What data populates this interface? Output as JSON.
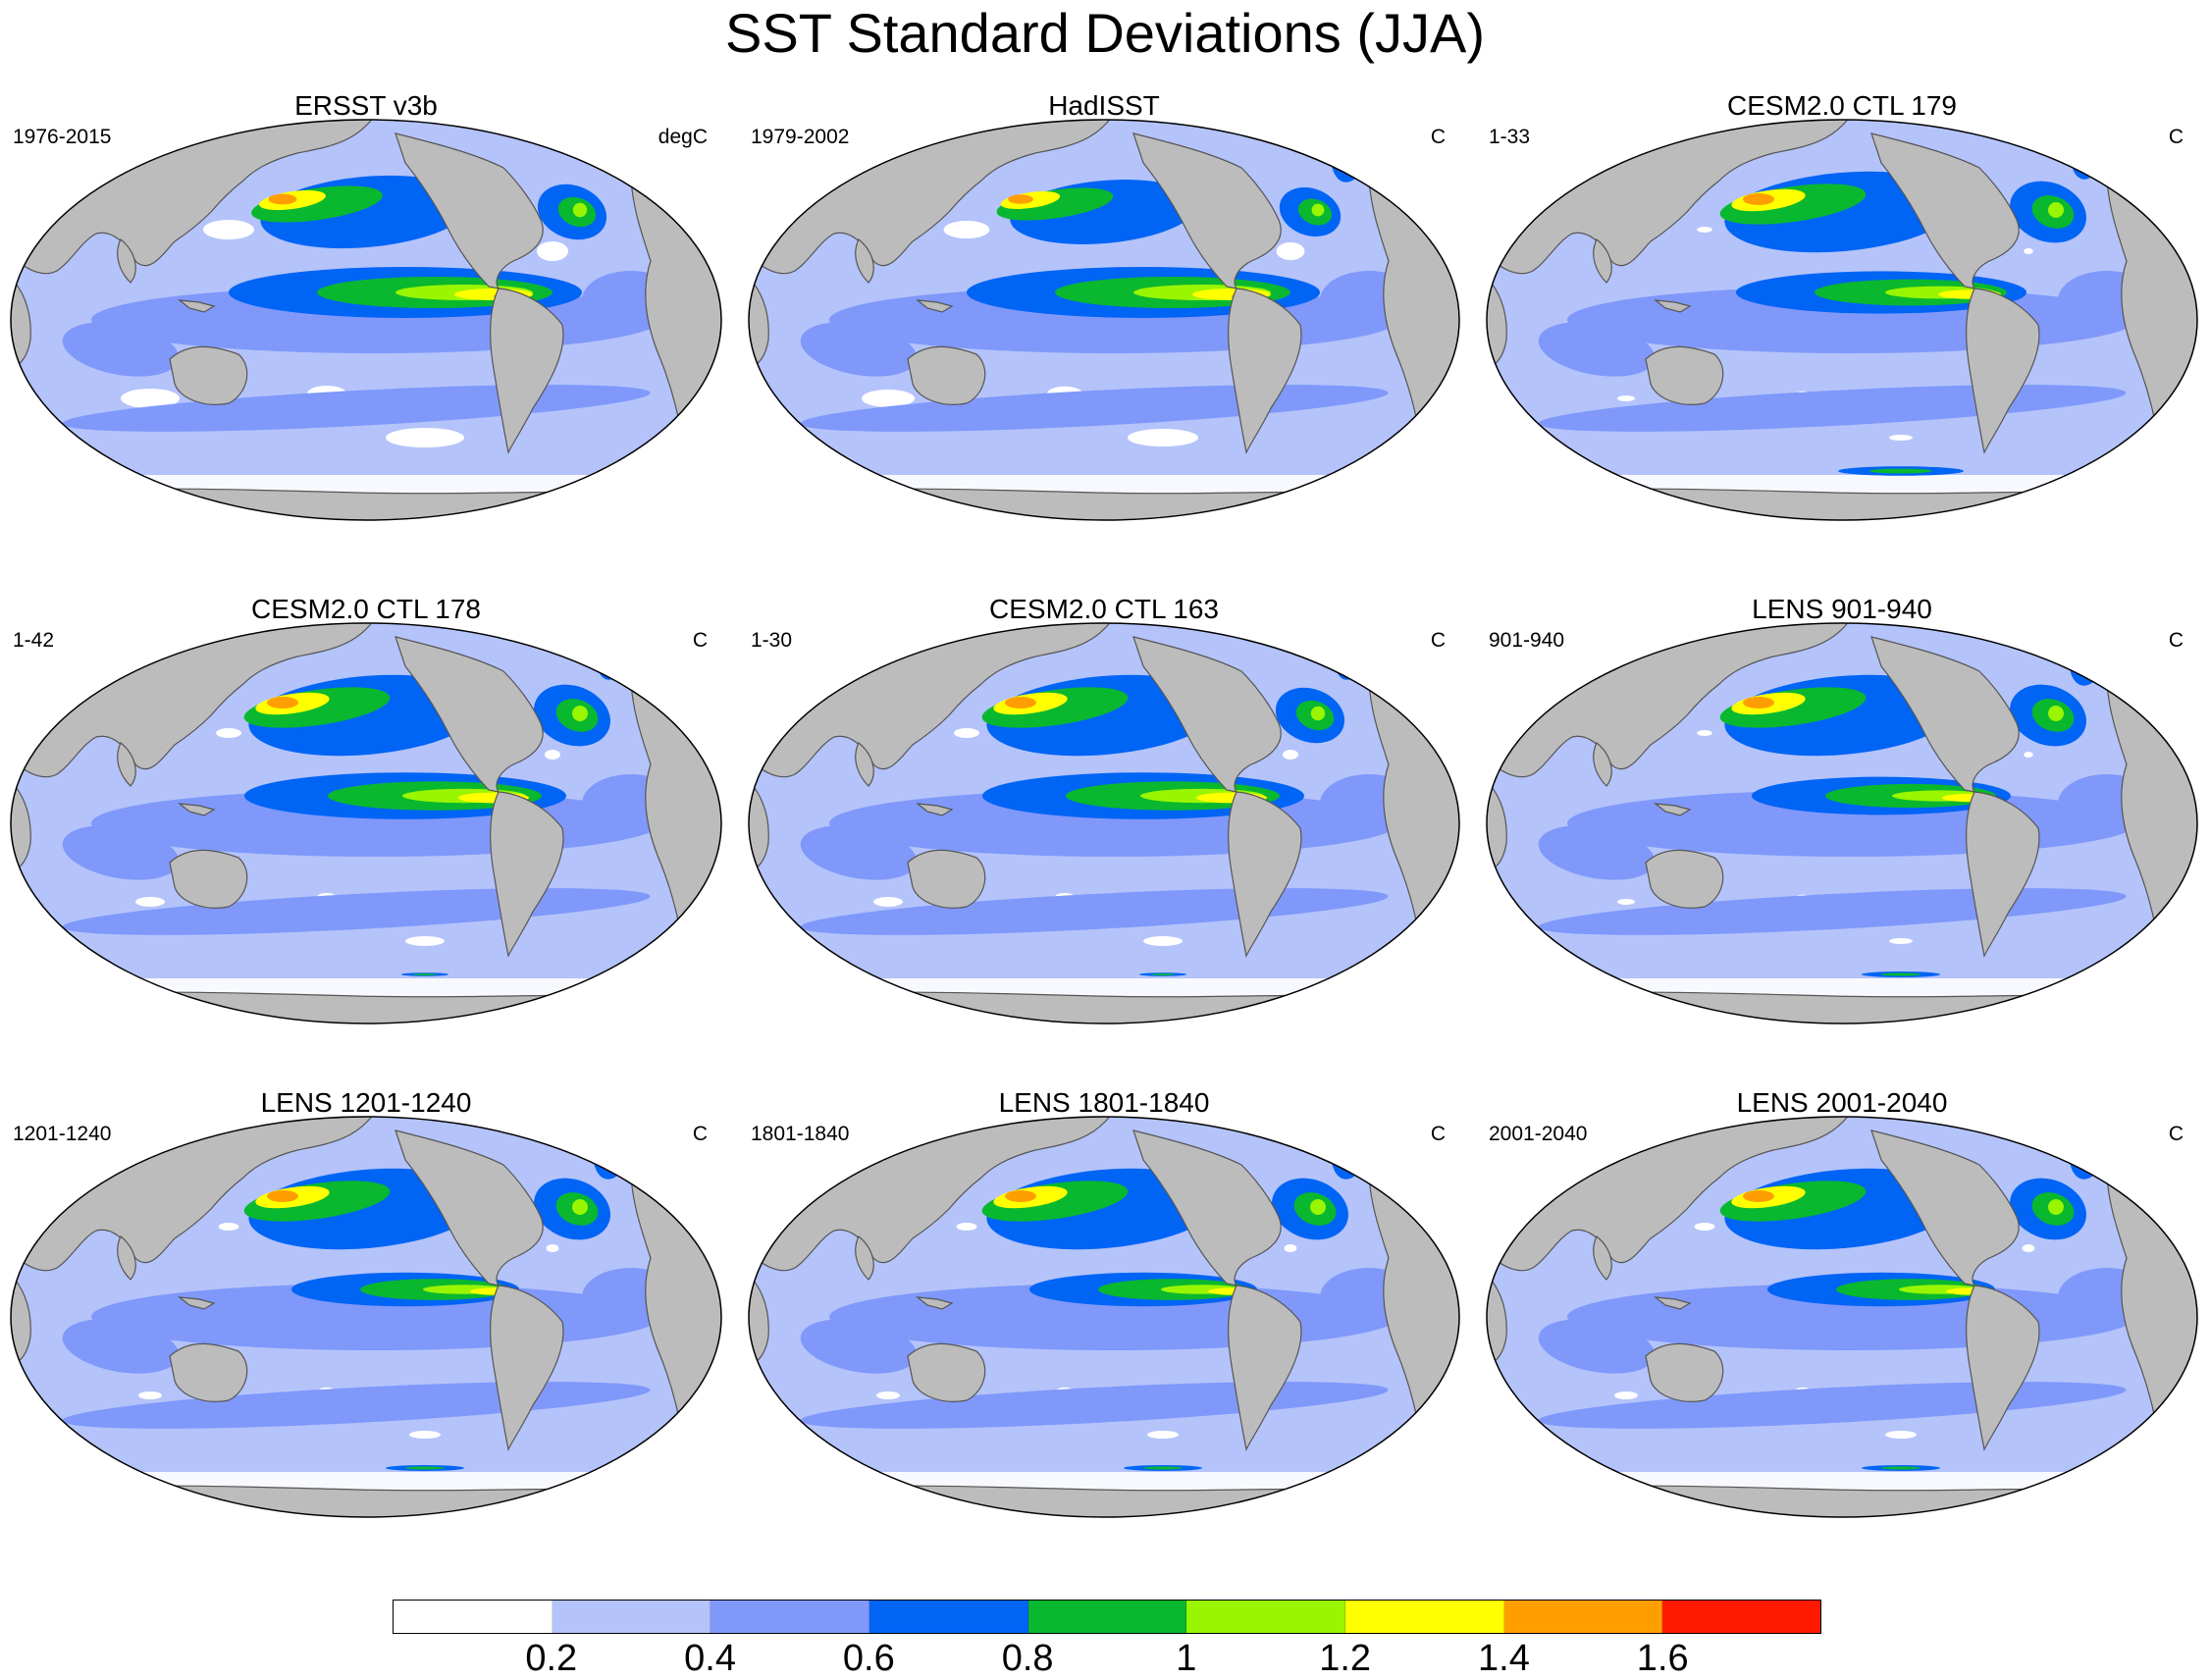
{
  "title": "SST Standard Deviations (JJA)",
  "panels": [
    {
      "title": "ERSST v3b",
      "period": "1976-2015",
      "units": "degC",
      "pattern": {
        "nino": 1.0,
        "npac": 0.9,
        "arctic": 0.5,
        "nat": 0.9,
        "so": 0.0,
        "white": 1.0
      }
    },
    {
      "title": "HadISST",
      "period": "1979-2002",
      "units": "C",
      "pattern": {
        "nino": 1.0,
        "npac": 0.8,
        "arctic": 1.0,
        "nat": 0.8,
        "so": 0.0,
        "white": 0.9
      }
    },
    {
      "title": "CESM2.0 CTL 179",
      "period": "1-33",
      "units": "C",
      "pattern": {
        "nino": 0.8,
        "npac": 1.0,
        "arctic": 0.9,
        "nat": 1.0,
        "so": 0.8,
        "white": 0.3
      }
    },
    {
      "title": "CESM2.0 CTL 178",
      "period": "1-42",
      "units": "C",
      "pattern": {
        "nino": 0.9,
        "npac": 1.0,
        "arctic": 0.8,
        "nat": 1.0,
        "so": 0.3,
        "white": 0.5
      }
    },
    {
      "title": "CESM2.0 CTL 163",
      "period": "1-30",
      "units": "C",
      "pattern": {
        "nino": 0.9,
        "npac": 1.0,
        "arctic": 0.8,
        "nat": 0.9,
        "so": 0.3,
        "white": 0.5
      }
    },
    {
      "title": "LENS 901-940",
      "period": "901-940",
      "units": "C",
      "pattern": {
        "nino": 0.7,
        "npac": 1.0,
        "arctic": 1.0,
        "nat": 1.0,
        "so": 0.5,
        "white": 0.3
      }
    },
    {
      "title": "LENS 1201-1240",
      "period": "1201-1240",
      "units": "C",
      "pattern": {
        "nino": 0.6,
        "npac": 1.0,
        "arctic": 1.0,
        "nat": 1.0,
        "so": 0.5,
        "white": 0.4
      }
    },
    {
      "title": "LENS 1801-1840",
      "period": "1801-1840",
      "units": "C",
      "pattern": {
        "nino": 0.6,
        "npac": 1.0,
        "arctic": 1.0,
        "nat": 1.0,
        "so": 0.5,
        "white": 0.4
      }
    },
    {
      "title": "LENS 2001-2040",
      "period": "2001-2040",
      "units": "C",
      "pattern": {
        "nino": 0.6,
        "npac": 1.0,
        "arctic": 1.0,
        "nat": 1.0,
        "so": 0.5,
        "white": 0.4
      }
    }
  ],
  "colorbar": {
    "colors": [
      "#ffffff",
      "#b4c3fa",
      "#7f98fa",
      "#0064f5",
      "#09b82f",
      "#99f500",
      "#ffff00",
      "#ff9e00",
      "#ff1a00"
    ],
    "labels": [
      "0.2",
      "0.4",
      "0.6",
      "0.8",
      "1",
      "1.2",
      "1.4",
      "1.6"
    ]
  },
  "style": {
    "land": "#bcbcbc",
    "coast": "#555555",
    "ocean_base": "#b4c3fa"
  }
}
